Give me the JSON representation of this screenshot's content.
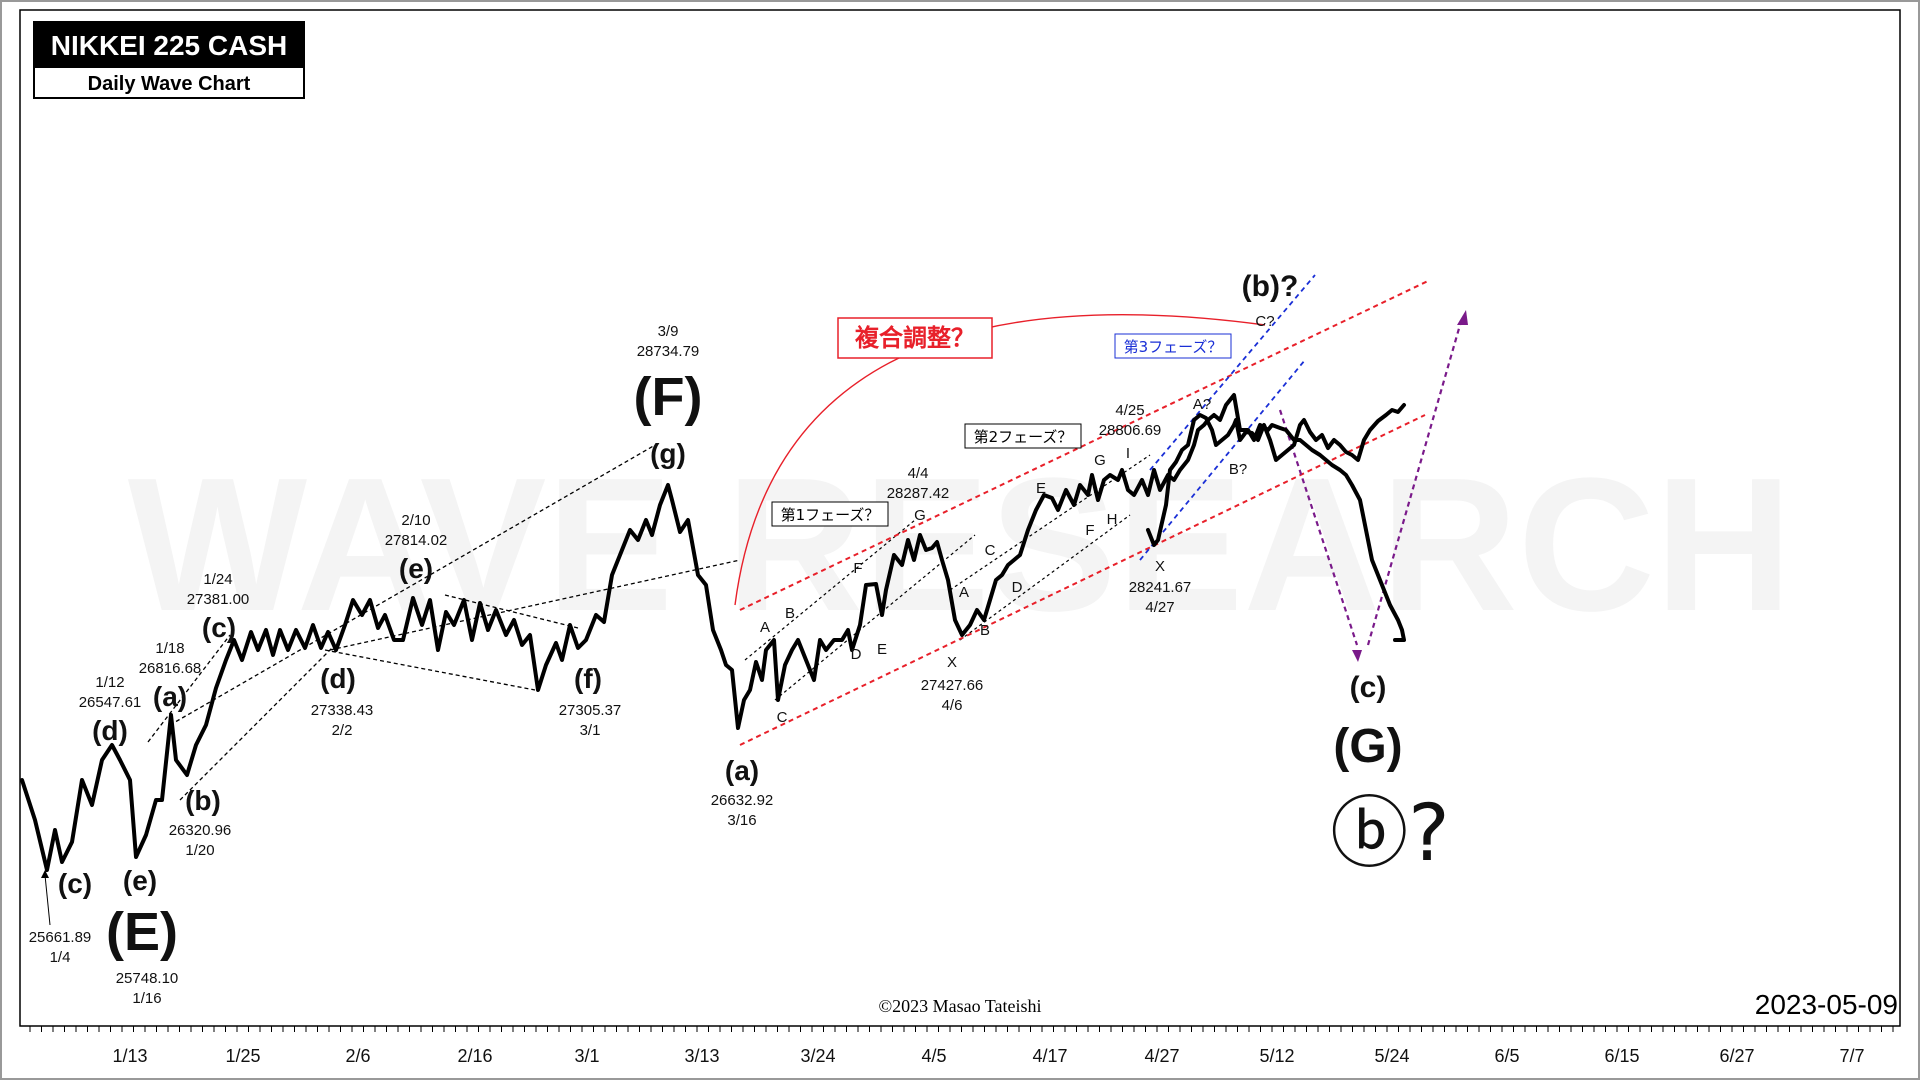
{
  "header": {
    "title": "NIKKEI 225 CASH",
    "subtitle": "Daily Wave Chart"
  },
  "watermark": "WAVE RESEARCH",
  "copyright": "©2023 Masao Tateishi",
  "chart_date": "2023-05-09",
  "colors": {
    "price": "#000000",
    "red_channel": "#e8202a",
    "blue_channel": "#1a2fd6",
    "projection": "#7a1a8a",
    "frame": "#000000"
  },
  "chart_data": {
    "type": "line",
    "x_axis_ticks": [
      "1/13",
      "1/25",
      "2/6",
      "2/16",
      "3/1",
      "3/13",
      "3/24",
      "4/5",
      "4/17",
      "4/27",
      "5/12",
      "5/24",
      "6/5",
      "6/15",
      "6/27",
      "7/7"
    ],
    "annotations": [
      {
        "date": "1/4",
        "price": "25661.89",
        "wave": "(c)"
      },
      {
        "date": "1/12",
        "price": "26547.61",
        "wave": "(d)"
      },
      {
        "date": "1/16",
        "price": "25748.10",
        "wave": "(e)",
        "major": "(E)"
      },
      {
        "date": "1/18",
        "price": "26816.68",
        "wave": "(a)"
      },
      {
        "date": "1/20",
        "price": "26320.96",
        "wave": "(b)"
      },
      {
        "date": "1/24",
        "price": "27381.00",
        "wave": "(c)"
      },
      {
        "date": "2/2",
        "price": "27338.43",
        "wave": "(d)"
      },
      {
        "date": "2/10",
        "price": "27814.02",
        "wave": "(e)"
      },
      {
        "date": "3/1",
        "price": "27305.37",
        "wave": "(f)"
      },
      {
        "date": "3/9",
        "price": "28734.79",
        "wave": "(g)",
        "major": "(F)"
      },
      {
        "date": "3/16",
        "price": "26632.92",
        "wave": "(a)"
      },
      {
        "date": "4/4",
        "price": "28287.42",
        "wave": "G"
      },
      {
        "date": "4/6",
        "price": "27427.66",
        "wave": "X"
      },
      {
        "date": "4/25",
        "price": "28806.69",
        "wave": "A?"
      },
      {
        "date": "4/27",
        "price": "28241.67",
        "wave": "X"
      }
    ],
    "phase_labels": [
      "第1フェーズ？",
      "第2フェーズ？",
      "第3フェーズ？"
    ],
    "complex_label": "複合調整？",
    "projection_labels": {
      "b": "(b)?",
      "c_small": "C?",
      "c": "(c)",
      "G": "(G)",
      "circled": "ⓑ?",
      "bq": "B?"
    },
    "sub_wave_letters": [
      "A",
      "B",
      "C",
      "D",
      "E",
      "F",
      "G",
      "A",
      "B",
      "C",
      "D",
      "E",
      "F",
      "G",
      "H",
      "I"
    ]
  }
}
